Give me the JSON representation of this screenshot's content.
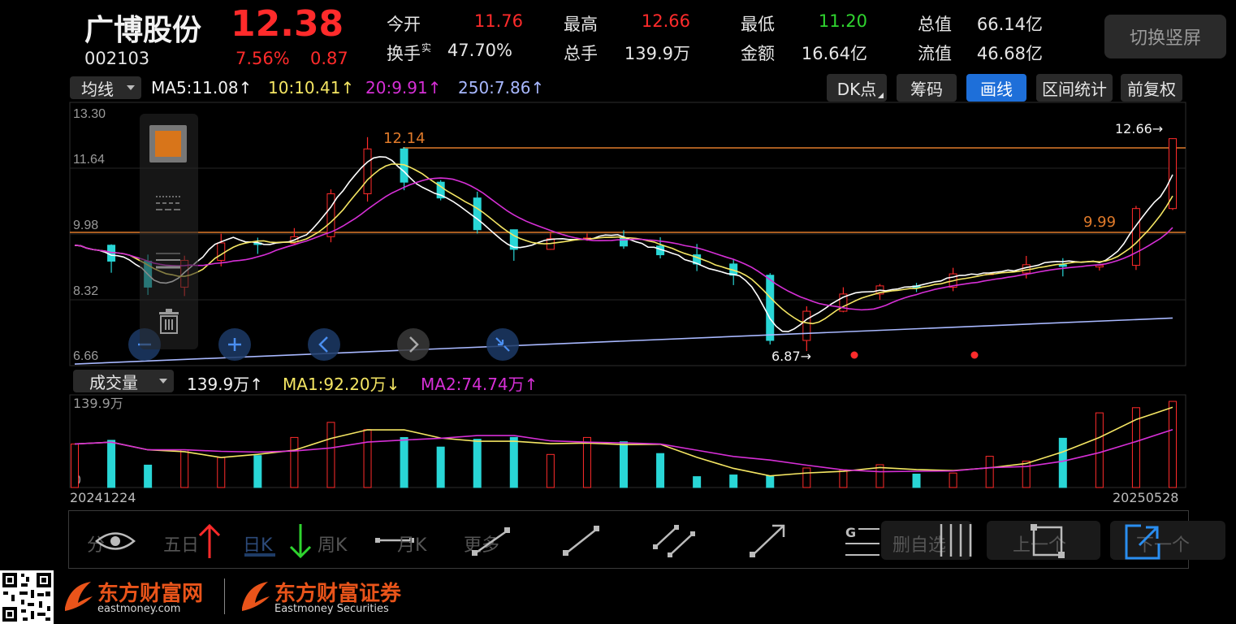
{
  "stock": {
    "name": "广博股份",
    "price": "12.38",
    "code": "002103",
    "change_pct": "7.56%",
    "change": "0.87"
  },
  "stats": {
    "open_label": "今开",
    "open_value": "11.76",
    "high_label": "最高",
    "high_value": "12.66",
    "low_label": "最低",
    "low_value": "11.20",
    "mktcap_label": "总值",
    "mktcap_value": "66.14亿",
    "turnover_label": "换手",
    "turnover_sup": "实",
    "turnover_value": "47.70%",
    "volume_label": "总手",
    "volume_value": "139.9万",
    "amount_label": "金额",
    "amount_value": "16.64亿",
    "float_label": "流值",
    "float_value": "46.68亿"
  },
  "switch_button": "切换竖屏",
  "indicator_bar": {
    "select_label": "均线",
    "ma5": "MA5:11.08↑",
    "ma10": "10:10.41↑",
    "ma20": "20:9.91↑",
    "ma250": "250:7.86↑",
    "buttons": [
      "DK点",
      "筹码",
      "画线",
      "区间统计",
      "前复权"
    ]
  },
  "price_chart": {
    "y_ticks": [
      "13.30",
      "11.64",
      "9.98",
      "8.32",
      "6.66"
    ],
    "high_marker": "12.14",
    "max_marker": "12.66→",
    "min_marker": "6.87→",
    "line_marker": "9.99"
  },
  "volume_bar": {
    "select_label": "成交量",
    "vol": "139.9万↑",
    "ma1": "MA1:92.20万↓",
    "ma2": "MA2:74.74万↑",
    "y_top": "139.9万",
    "y_zero": "0",
    "date_start": "20241224",
    "date_end": "20250528"
  },
  "draw_toolbar": {
    "periods": [
      "分",
      "五日",
      "日K",
      "周K",
      "月K",
      "更多"
    ],
    "delete_self": "删自选",
    "prev": "上一个",
    "next": "下一个"
  },
  "footer": {
    "brand1": "东方财富网",
    "brand1_sub": "eastmoney.com",
    "brand2": "东方财富证券",
    "brand2_sub": "Eastmoney Securities"
  },
  "colors": {
    "up": "#ff2b2b",
    "down": "#29d6d6",
    "ma5": "#ffffff",
    "ma10": "#f5e663",
    "ma20": "#d62fd6",
    "ma250": "#a8b8ff",
    "accent": "#1e6fd9",
    "brand": "#e9541a"
  },
  "chart_data": {
    "type": "candlestick",
    "y_range": [
      6.66,
      13.3
    ],
    "x_range": [
      "20241224",
      "20250528"
    ],
    "price_max": 12.66,
    "price_min": 6.87,
    "last_close": 12.38,
    "volume_axis_max": "139.9万"
  }
}
